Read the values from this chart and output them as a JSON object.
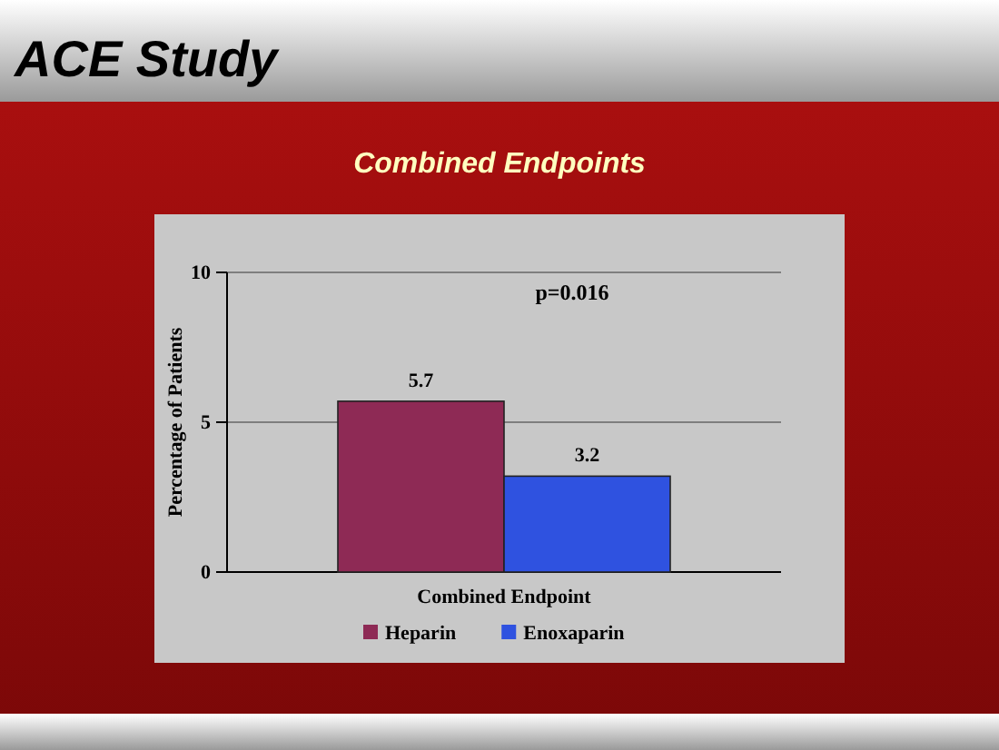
{
  "chart_data": {
    "type": "bar",
    "title": "ACE Study",
    "subtitle": "Combined Endpoints",
    "ylabel": "Percentage of Patients",
    "xlabel": "Combined Endpoint",
    "annotations": [
      "p=0.016"
    ],
    "categories": [
      null
    ],
    "series": [
      {
        "name": "Heparin",
        "color": "#8e2a55",
        "values": [
          5.7
        ]
      },
      {
        "name": "Enoxaparin",
        "color": "#2f52e0",
        "values": [
          3.2
        ]
      }
    ],
    "ylim": [
      0,
      10
    ],
    "yticks": [
      0,
      5,
      10
    ],
    "grid": "y",
    "legend": "bottom",
    "data_labels": true
  }
}
